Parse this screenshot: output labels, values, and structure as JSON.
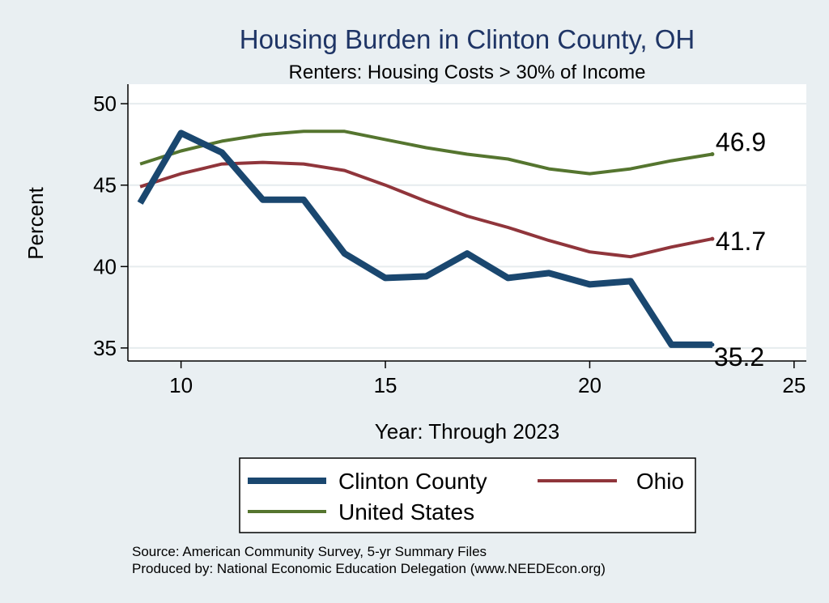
{
  "chart_data": {
    "type": "line",
    "title": "Housing Burden in Clinton County, OH",
    "subtitle": "Renters: Housing Costs > 30% of Income",
    "xlabel": "Year: Through 2023",
    "ylabel": "Percent",
    "xlim": [
      8.7,
      25.3
    ],
    "ylim": [
      34.2,
      51.2
    ],
    "xticks": [
      10,
      15,
      20,
      25
    ],
    "yticks": [
      35,
      40,
      45,
      50
    ],
    "grid": true,
    "legend_position": "bottom",
    "x": [
      9,
      10,
      11,
      12,
      13,
      14,
      15,
      16,
      17,
      18,
      19,
      20,
      21,
      22,
      23
    ],
    "series": [
      {
        "name": "Clinton County",
        "color": "#1a476f",
        "values": [
          43.9,
          48.2,
          47.0,
          44.1,
          44.1,
          40.8,
          39.3,
          39.4,
          40.8,
          39.3,
          39.6,
          38.9,
          39.1,
          35.2,
          35.2
        ],
        "end_label": "35.2"
      },
      {
        "name": "Ohio",
        "color": "#90353b",
        "values": [
          44.9,
          45.7,
          46.3,
          46.4,
          46.3,
          45.9,
          45.0,
          44.0,
          43.1,
          42.4,
          41.6,
          40.9,
          40.6,
          41.2,
          41.7
        ],
        "end_label": "41.7"
      },
      {
        "name": "United States",
        "color": "#55752f",
        "values": [
          46.3,
          47.1,
          47.7,
          48.1,
          48.3,
          48.3,
          47.8,
          47.3,
          46.9,
          46.6,
          46.0,
          45.7,
          46.0,
          46.5,
          46.9
        ],
        "end_label": "46.9"
      }
    ]
  },
  "notes": {
    "source": "Source: American Community Survey, 5-yr Summary Files",
    "produced_by": "Produced by: National Economic Education Delegation (www.NEEDEcon.org)"
  }
}
